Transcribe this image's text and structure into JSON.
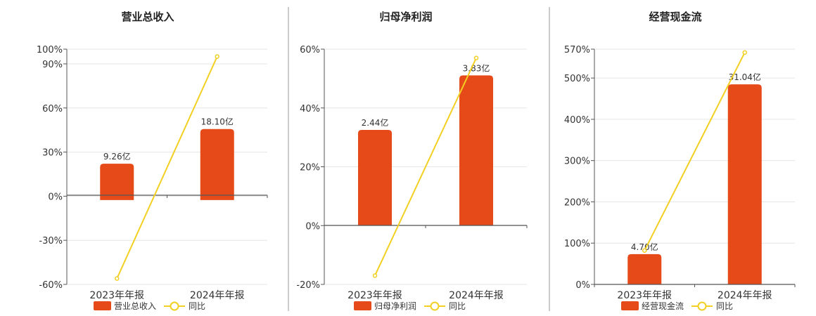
{
  "colors": {
    "bar": "#E64A19",
    "line": "#F2D023",
    "axis": "#555555",
    "grid": "#E6E6E6",
    "divider": "#999999",
    "text": "#333333"
  },
  "chart_data": [
    {
      "type": "bar",
      "title": "营业总收入",
      "categories": [
        "2023年年报",
        "2024年年报"
      ],
      "series": [
        {
          "name": "营业总收入",
          "type": "bar",
          "values": [
            9.26,
            18.1
          ],
          "labels": [
            "9.26亿",
            "18.10亿"
          ]
        },
        {
          "name": "同比",
          "type": "line",
          "axis": "right",
          "values": [
            -56.0,
            95.0
          ]
        }
      ],
      "y_ticks": [
        "100%",
        "90%",
        "60%",
        "30%",
        "0%",
        "-30%",
        "-60%"
      ],
      "y_tick_values": [
        100,
        90,
        60,
        30,
        0,
        -30,
        -60
      ],
      "ylim": [
        -60,
        100
      ],
      "bar_ylim": [
        -21.5,
        38.45
      ],
      "legend": [
        "营业总收入",
        "同比"
      ],
      "legend_position": "bottom"
    },
    {
      "type": "bar",
      "title": "归母净利润",
      "categories": [
        "2023年年报",
        "2024年年报"
      ],
      "series": [
        {
          "name": "归母净利润",
          "type": "bar",
          "values": [
            2.44,
            3.83
          ],
          "labels": [
            "2.44亿",
            "3.83亿"
          ]
        },
        {
          "name": "同比",
          "type": "line",
          "axis": "right",
          "values": [
            -17.0,
            57.0
          ]
        }
      ],
      "y_ticks": [
        "60%",
        "40%",
        "20%",
        "0%",
        "-20%"
      ],
      "y_tick_values": [
        60,
        40,
        20,
        0,
        -20
      ],
      "ylim": [
        -20,
        60
      ],
      "bar_ylim": [
        -1.5,
        4.5
      ],
      "legend": [
        "归母净利润",
        "同比"
      ],
      "legend_position": "bottom"
    },
    {
      "type": "bar",
      "title": "经营现金流",
      "categories": [
        "2023年年报",
        "2024年年报"
      ],
      "series": [
        {
          "name": "经营现金流",
          "type": "bar",
          "values": [
            4.7,
            31.04
          ],
          "labels": [
            "4.70亿",
            "31.04亿"
          ]
        },
        {
          "name": "同比",
          "type": "line",
          "axis": "right",
          "values": [
            82.0,
            562.0
          ]
        }
      ],
      "y_ticks": [
        "570%",
        "500%",
        "400%",
        "300%",
        "200%",
        "100%",
        "0%"
      ],
      "y_tick_values": [
        570,
        500,
        400,
        300,
        200,
        100,
        0
      ],
      "ylim": [
        0,
        570
      ],
      "bar_ylim": [
        0,
        36.5
      ],
      "legend": [
        "经营现金流",
        "同比"
      ],
      "legend_position": "bottom"
    }
  ]
}
